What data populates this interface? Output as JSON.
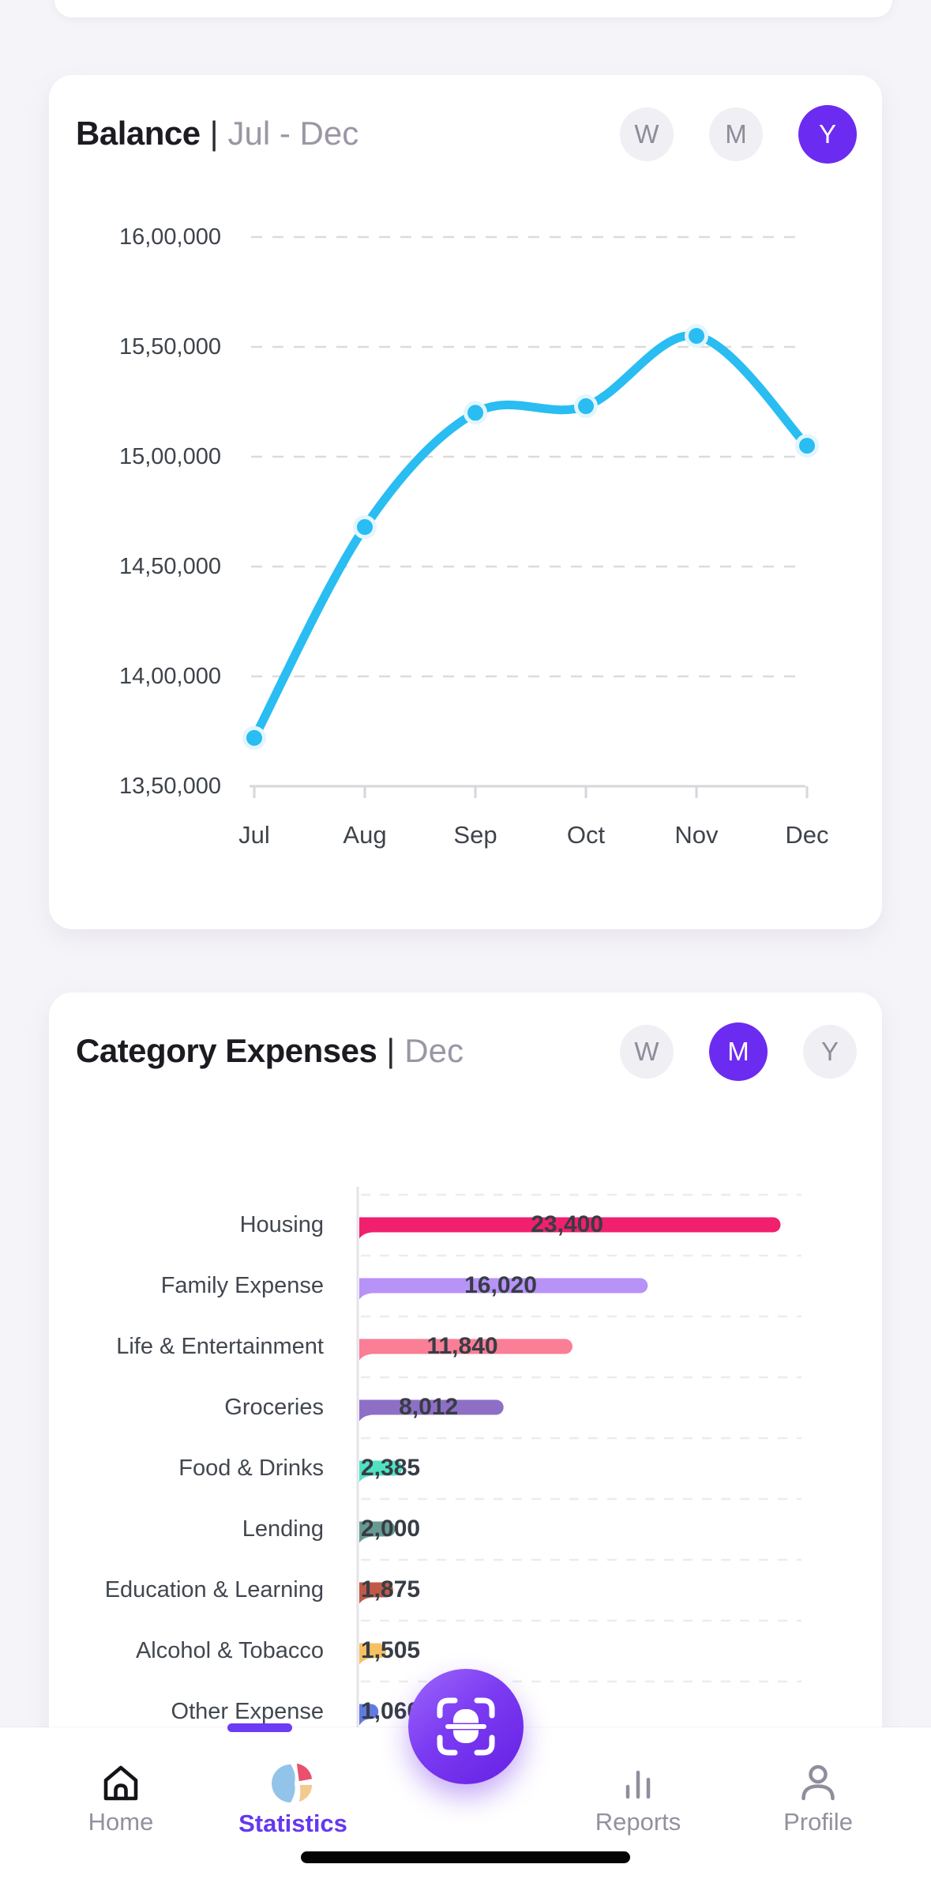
{
  "balance_card": {
    "title": "Balance",
    "separator": "|",
    "period_label": "Jul - Dec",
    "period_buttons": [
      {
        "label": "W",
        "active": false
      },
      {
        "label": "M",
        "active": false
      },
      {
        "label": "Y",
        "active": true
      }
    ]
  },
  "category_card": {
    "title": "Category Expenses",
    "separator": "|",
    "period_label": "Dec",
    "period_buttons": [
      {
        "label": "W",
        "active": false
      },
      {
        "label": "M",
        "active": true
      },
      {
        "label": "Y",
        "active": false
      }
    ]
  },
  "chart_data": [
    {
      "type": "line",
      "title": "Balance",
      "period": "Jul - Dec",
      "x": [
        "Jul",
        "Aug",
        "Sep",
        "Oct",
        "Nov",
        "Dec"
      ],
      "values": [
        1372000,
        1468000,
        1520000,
        1523000,
        1555000,
        1505000
      ],
      "ylim": [
        1350000,
        1600000
      ],
      "ytick_labels": [
        "16,00,000",
        "15,50,000",
        "15,00,000",
        "14,50,000",
        "14,00,000",
        "13,50,000"
      ],
      "ytick_values": [
        1600000,
        1550000,
        1500000,
        1450000,
        1400000,
        1350000
      ],
      "xlabel": "",
      "ylabel": "",
      "legend": "none",
      "grid": "dashed-horizontal",
      "line_color": "#29BDF2",
      "marker_ring_color": "#E3F5FD"
    },
    {
      "type": "bar",
      "title": "Category Expenses",
      "period": "Dec",
      "orientation": "horizontal",
      "categories": [
        "Housing",
        "Family Expense",
        "Life & Entertainment",
        "Groceries",
        "Food & Drinks",
        "Lending",
        "Education & Learning",
        "Alcohol & Tobacco",
        "Other Expense"
      ],
      "values": [
        23400,
        16020,
        11840,
        8012,
        2385,
        2000,
        1875,
        1505,
        1060
      ],
      "value_labels": [
        "23,400",
        "16,020",
        "11,840",
        "8,012",
        "2,385",
        "2,000",
        "1,875",
        "1,505",
        "1,060"
      ],
      "bar_colors": [
        "#F0206E",
        "#B792F7",
        "#F97E96",
        "#8E6FC6",
        "#4FE3C2",
        "#679B92",
        "#C05A48",
        "#F7C163",
        "#5F7BE0"
      ],
      "xlim": [
        0,
        25000
      ],
      "legend": "none",
      "grid": "dashed-horizontal"
    }
  ],
  "fab": {
    "icon": "scan-receipt-icon"
  },
  "nav": {
    "items": [
      {
        "label": "Home",
        "icon": "home-icon",
        "active": false
      },
      {
        "label": "Statistics",
        "icon": "pie-chart-icon",
        "active": true
      },
      {
        "label": "Reports",
        "icon": "bar-chart-icon",
        "active": false
      },
      {
        "label": "Profile",
        "icon": "profile-icon",
        "active": false
      }
    ]
  },
  "colors": {
    "accent_purple": "#6C2BF0",
    "nav_active": "#6538F2",
    "line_cyan": "#29BDF2",
    "page_bg": "#F5F4F8",
    "card_bg": "#FFFFFF",
    "chip_bg": "#F0EFF4",
    "chip_text": "#8F8B99",
    "axis_text": "#3E434B",
    "title_text": "#1B1B21",
    "subtitle_text": "#9B96A4",
    "gridline": "#DBDBDF",
    "fab_gradient_start": "#9A63FA",
    "fab_gradient_end": "#661FE3"
  }
}
